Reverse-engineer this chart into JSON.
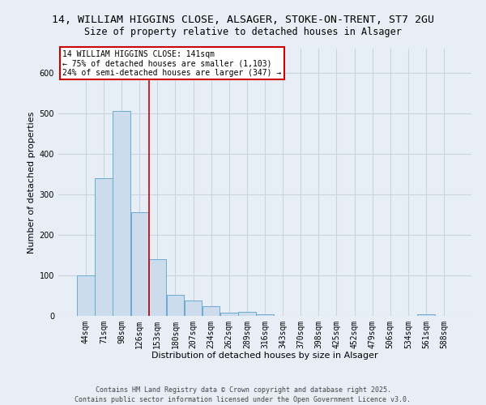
{
  "title1": "14, WILLIAM HIGGINS CLOSE, ALSAGER, STOKE-ON-TRENT, ST7 2GU",
  "title2": "Size of property relative to detached houses in Alsager",
  "xlabel": "Distribution of detached houses by size in Alsager",
  "ylabel": "Number of detached properties",
  "bar_labels": [
    "44sqm",
    "71sqm",
    "98sqm",
    "126sqm",
    "153sqm",
    "180sqm",
    "207sqm",
    "234sqm",
    "262sqm",
    "289sqm",
    "316sqm",
    "343sqm",
    "370sqm",
    "398sqm",
    "425sqm",
    "452sqm",
    "479sqm",
    "506sqm",
    "534sqm",
    "561sqm",
    "588sqm"
  ],
  "bar_values": [
    100,
    340,
    507,
    257,
    140,
    53,
    38,
    25,
    8,
    10,
    5,
    0,
    0,
    0,
    0,
    0,
    0,
    0,
    0,
    5,
    0
  ],
  "bar_color": "#ccdcec",
  "bar_edge_color": "#6aaad4",
  "grid_color": "#c8d4e0",
  "bg_color": "#e8eef5",
  "vline_x": 3.52,
  "vline_color": "#cc0000",
  "annotation_text": "14 WILLIAM HIGGINS CLOSE: 141sqm\n← 75% of detached houses are smaller (1,103)\n24% of semi-detached houses are larger (347) →",
  "annotation_box_color": "#ffffff",
  "annotation_box_edge": "#cc0000",
  "annotation_fontsize": 7.0,
  "title1_fontsize": 9.5,
  "title2_fontsize": 8.5,
  "xlabel_fontsize": 8.0,
  "ylabel_fontsize": 8.0,
  "tick_fontsize": 7.0,
  "footer": "Contains HM Land Registry data © Crown copyright and database right 2025.\nContains public sector information licensed under the Open Government Licence v3.0.",
  "footer_fontsize": 6.0,
  "ylim": [
    0,
    660
  ]
}
